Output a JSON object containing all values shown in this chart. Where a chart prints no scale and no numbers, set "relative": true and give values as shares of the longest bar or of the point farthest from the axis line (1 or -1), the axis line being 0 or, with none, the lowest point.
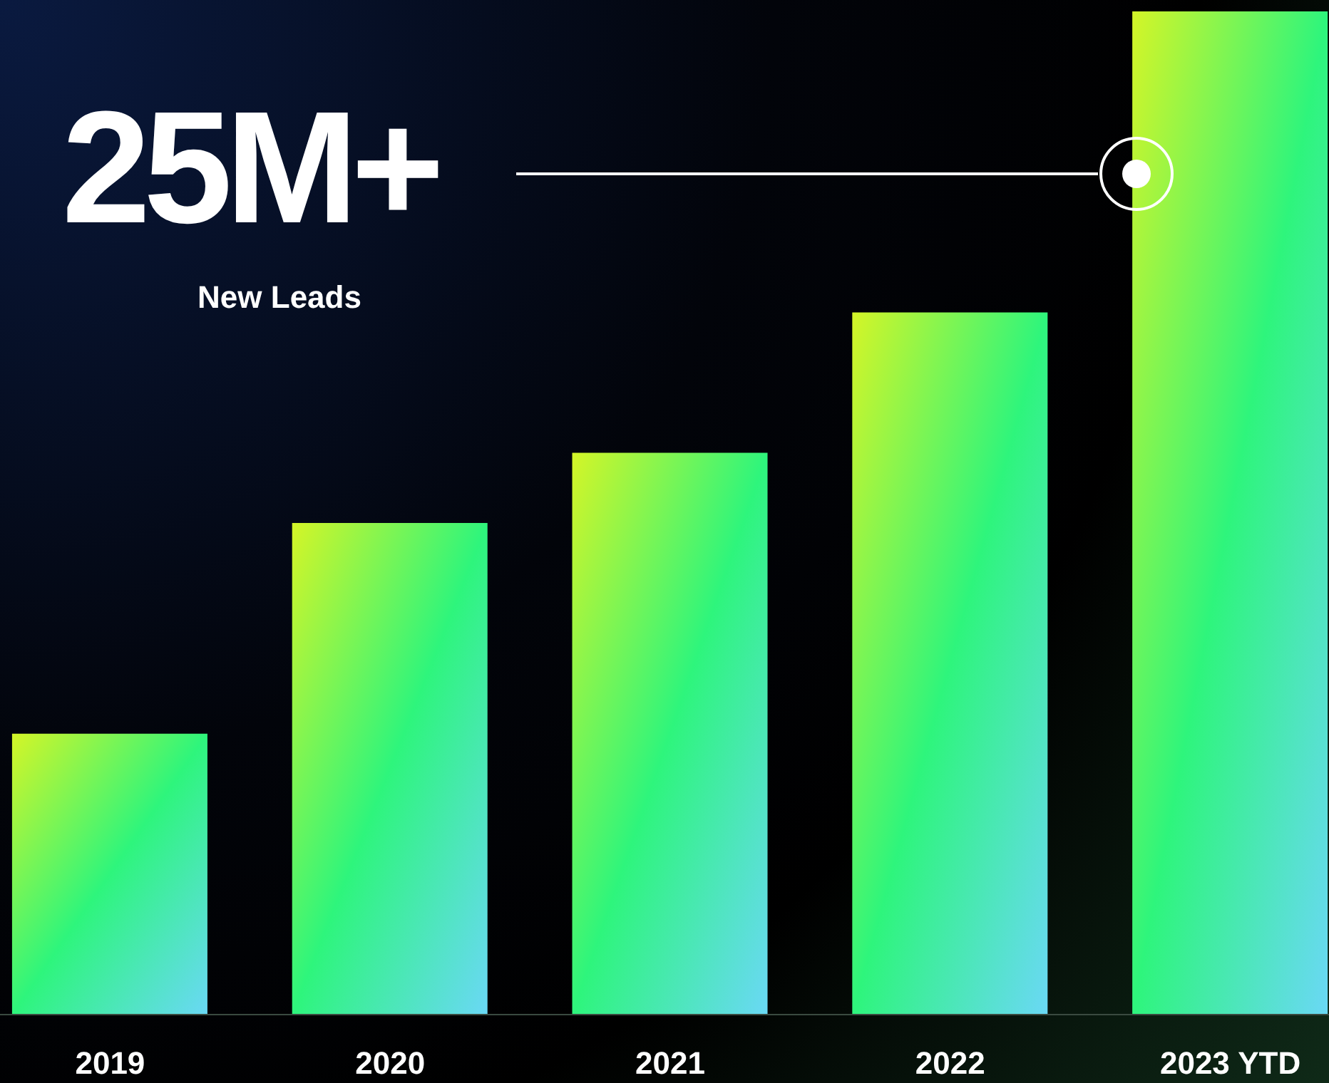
{
  "chart_data": {
    "type": "bar",
    "relative": true,
    "categories": [
      "2019",
      "2020",
      "2021",
      "2022",
      "2023 YTD"
    ],
    "values": [
      0.28,
      0.49,
      0.56,
      0.7,
      1
    ],
    "color": "#2ef57c",
    "annotations": [
      "25M+",
      "New Leads"
    ],
    "grid": false,
    "legend": false
  }
}
